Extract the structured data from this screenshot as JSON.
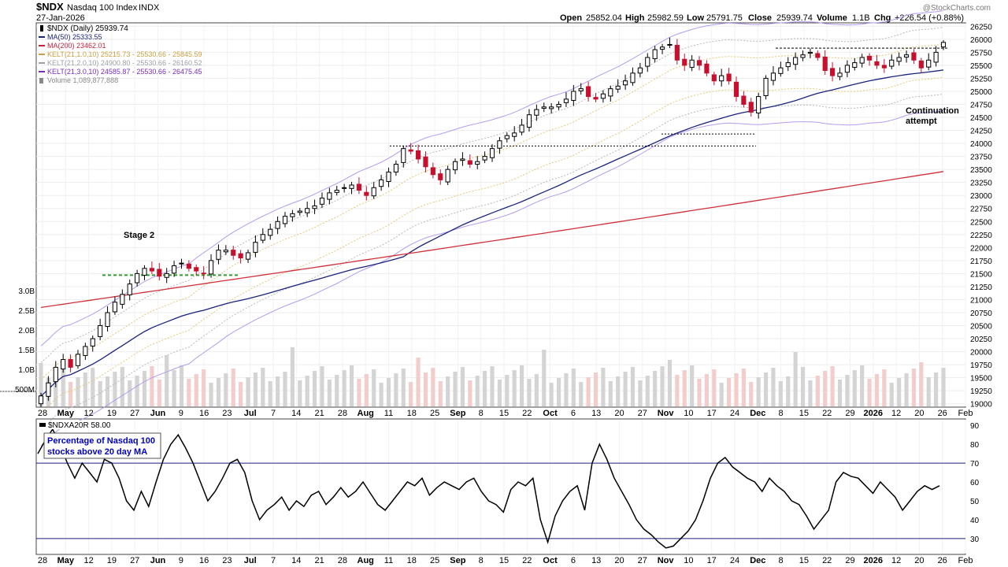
{
  "header": {
    "symbol": "$NDX",
    "name": "Nasdaq 100 Index",
    "exchange": "INDX",
    "date": "27-Jan-2026",
    "watermark": "@StockCharts.com",
    "quote": {
      "open_label": "Open",
      "open": "25852.04",
      "high_label": "High",
      "high": "25982.59",
      "low_label": "Low",
      "low": "25791.75",
      "close_label": "Close",
      "close": "25939.74",
      "volume_label": "Volume",
      "volume": "1.1B",
      "chg_label": "Chg",
      "chg": "+226.54 (+0.88%)"
    }
  },
  "legend": [
    {
      "text": "$NDX (Daily) 25939.74",
      "color": "#000000",
      "icon": "candle-icon"
    },
    {
      "text": "MA(50) 25333.55",
      "color": "#1a237e",
      "icon": "line-swatch"
    },
    {
      "text": "MA(200) 23462.01",
      "color": "#cc1f3a",
      "icon": "line-swatch"
    },
    {
      "text": "KELT(21,1.0,10) 25215.73 - 25530.66 - 25845.59",
      "color": "#c8a040",
      "icon": "line-swatch"
    },
    {
      "text": "KELT(21,2.0,10) 24900.80 - 25530.66 - 26160.52",
      "color": "#9aa0a6",
      "icon": "line-swatch"
    },
    {
      "text": "KELT(21,3.0,10) 24585.87 - 25530.66 - 26475.45",
      "color": "#7b2cbf",
      "icon": "line-swatch"
    },
    {
      "text": "Volume 1,089,877,888",
      "color": "#888888",
      "icon": "bar-swatch"
    }
  ],
  "annotations": {
    "stage2": "Stage 2",
    "continuation": [
      "Continuation",
      "attempt"
    ]
  },
  "lower_panel": {
    "title": "$NDXA20R 58.00",
    "note": [
      "Percentage of Nasdaq 100",
      "stocks above 20 day MA"
    ]
  },
  "colors": {
    "up": "#000000",
    "down": "#c8102e",
    "ma50": "#1a237e",
    "ma200": "#d0303a",
    "kelt1": "#e8c878",
    "kelt2": "#b8b8b8",
    "kelt3": "#b49cf0",
    "vol_up": "#d4d4d4",
    "vol_down": "#f3cccc",
    "support": "#2e9e2e",
    "note_text": "#0000cc"
  },
  "chart_data": [
    {
      "type": "candlestick",
      "title": "$NDX (Daily) 25939.74",
      "ylim": [
        18950,
        26300
      ],
      "y_ticks": [
        19000,
        19250,
        19500,
        19750,
        20000,
        20250,
        20500,
        20750,
        21000,
        21250,
        21500,
        21750,
        22000,
        22250,
        22500,
        22750,
        23000,
        23250,
        23500,
        23750,
        24000,
        24250,
        24500,
        24750,
        25000,
        25250,
        25500,
        25750,
        26000,
        26250
      ],
      "volume_ticks": [
        "500M",
        "1.0B",
        "1.5B",
        "2.0B",
        "2.5B",
        "3.0B"
      ],
      "x_labels": [
        "28",
        "May",
        "12",
        "19",
        "27",
        "Jun",
        "9",
        "16",
        "23",
        "Jul",
        "7",
        "14",
        "21",
        "28",
        "Aug",
        "11",
        "18",
        "25",
        "Sep",
        "8",
        "15",
        "22",
        "Oct",
        "6",
        "13",
        "20",
        "27",
        "Nov",
        "10",
        "17",
        "24",
        "Dec",
        "8",
        "15",
        "22",
        "29",
        "2026",
        "12",
        "20",
        "26",
        "Feb"
      ],
      "x_month_labels": [
        "May",
        "Jun",
        "Jul",
        "Aug",
        "Sep",
        "Oct",
        "Nov",
        "Dec",
        "2026"
      ],
      "closes": [
        19150,
        19400,
        19700,
        19850,
        19700,
        19950,
        20100,
        20250,
        20500,
        20750,
        20950,
        21100,
        21300,
        21500,
        21600,
        21550,
        21450,
        21500,
        21650,
        21700,
        21600,
        21550,
        21500,
        21750,
        21950,
        21950,
        21850,
        21800,
        21900,
        22100,
        22250,
        22350,
        22500,
        22600,
        22650,
        22700,
        22750,
        22800,
        22950,
        23050,
        23100,
        23150,
        23200,
        23100,
        23000,
        23150,
        23300,
        23450,
        23600,
        23900,
        23850,
        23700,
        23550,
        23400,
        23300,
        23500,
        23650,
        23700,
        23600,
        23650,
        23750,
        23900,
        24050,
        24150,
        24200,
        24350,
        24550,
        24650,
        24700,
        24700,
        24750,
        24850,
        25000,
        25050,
        24900,
        24850,
        24950,
        25050,
        25100,
        25200,
        25350,
        25450,
        25650,
        25800,
        25850,
        25900,
        25600,
        25500,
        25600,
        25500,
        25350,
        25200,
        25300,
        25200,
        24900,
        24750,
        24600,
        24900,
        25250,
        25350,
        25450,
        25550,
        25650,
        25700,
        25750,
        25650,
        25400,
        25300,
        25350,
        25500,
        25550,
        25650,
        25600,
        25500,
        25450,
        25600,
        25650,
        25700,
        25600,
        25450,
        25600,
        25750,
        25939.74
      ],
      "last": {
        "open": 25852.04,
        "high": 25982.59,
        "low": 25791.75,
        "close": 25939.74
      }
    },
    {
      "type": "line",
      "title": "$NDXA20R 58.00",
      "ylim": [
        22,
        93
      ],
      "y_ticks": [
        30,
        40,
        50,
        60,
        70,
        80,
        90
      ],
      "reference_lines": [
        70,
        30
      ],
      "values": [
        75,
        82,
        88,
        80,
        70,
        62,
        70,
        65,
        60,
        72,
        70,
        62,
        50,
        45,
        55,
        47,
        60,
        72,
        80,
        85,
        78,
        70,
        60,
        50,
        55,
        62,
        70,
        72,
        65,
        50,
        40,
        45,
        48,
        52,
        45,
        50,
        47,
        53,
        55,
        48,
        52,
        57,
        52,
        55,
        60,
        54,
        48,
        45,
        50,
        55,
        60,
        58,
        62,
        53,
        57,
        60,
        58,
        56,
        60,
        62,
        55,
        50,
        48,
        44,
        56,
        60,
        58,
        62,
        40,
        28,
        42,
        50,
        55,
        58,
        45,
        70,
        80,
        72,
        62,
        55,
        48,
        40,
        35,
        32,
        28,
        25,
        26,
        30,
        34,
        40,
        50,
        62,
        70,
        73,
        68,
        65,
        62,
        60,
        55,
        62,
        58,
        55,
        50,
        48,
        42,
        35,
        40,
        45,
        60,
        65,
        63,
        62,
        58,
        54,
        60,
        56,
        52,
        45,
        50,
        55,
        58,
        56,
        58
      ],
      "last": 58.0
    }
  ]
}
